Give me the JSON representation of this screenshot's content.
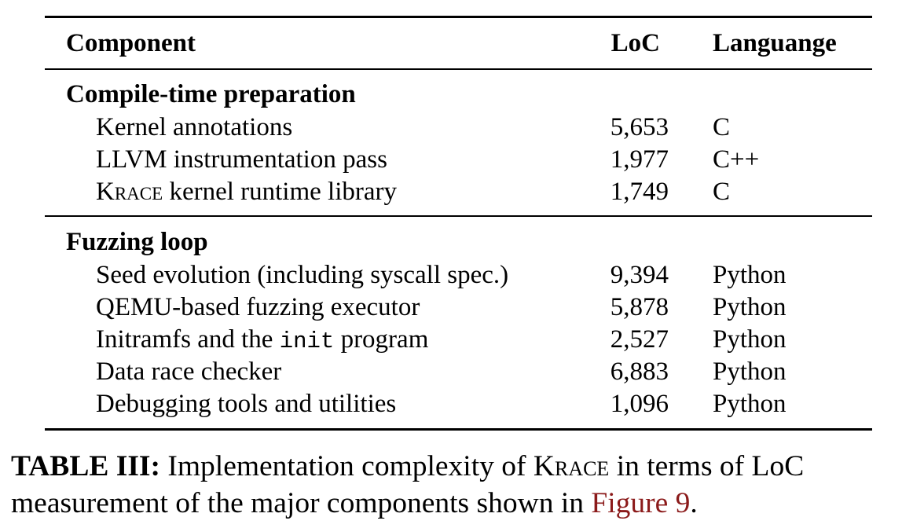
{
  "table": {
    "header": {
      "component": "Component",
      "loc": "LoC",
      "language": "Languange"
    },
    "sections": [
      {
        "title": "Compile-time preparation",
        "rows": [
          {
            "component": "Kernel annotations",
            "loc": "5,653",
            "language": "C"
          },
          {
            "component": "LLVM instrumentation pass",
            "loc": "1,977",
            "language": "C++"
          },
          {
            "component_prefix": "Krace",
            "component": " kernel runtime library",
            "loc": "1,749",
            "language": "C"
          }
        ]
      },
      {
        "title": "Fuzzing loop",
        "rows": [
          {
            "component": "Seed evolution (including syscall spec.)",
            "loc": "9,394",
            "language": "Python"
          },
          {
            "component": "QEMU-based fuzzing executor",
            "loc": "5,878",
            "language": "Python"
          },
          {
            "component_prefix": "Initramfs and the ",
            "component_code": "init",
            "component": " program",
            "loc": "2,527",
            "language": "Python"
          },
          {
            "component": "Data race checker",
            "loc": "6,883",
            "language": "Python"
          },
          {
            "component": "Debugging tools and utilities",
            "loc": "1,096",
            "language": "Python"
          }
        ]
      }
    ]
  },
  "caption": {
    "label": "TABLE III:",
    "text_1": " Implementation complexity of ",
    "system": "Krace",
    "text_2": " in terms of LoC",
    "text_3": "measurement of the major components shown in ",
    "link": "Figure 9",
    "text_4": "."
  },
  "colors": {
    "link": "#8b1a1a"
  }
}
